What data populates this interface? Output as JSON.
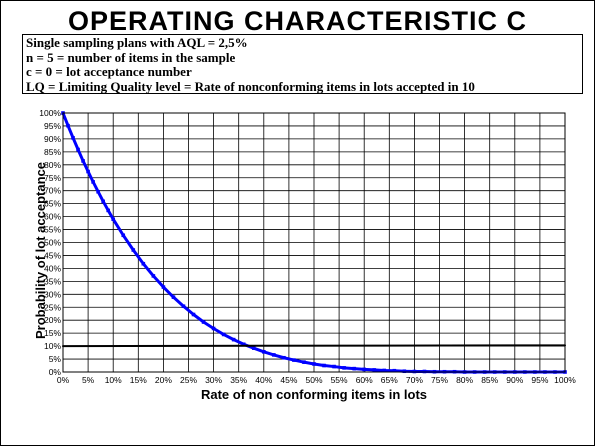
{
  "title": "OPERATING CHARACTERISTIC C",
  "info_lines": [
    "Single sampling  plans with AQL = 2,5%",
    "n = 5 = number of items in the sample",
    "c = 0 = lot acceptance number",
    "LQ = Limiting Quality level = Rate of nonconforming items in lots accepted in 10"
  ],
  "chart_data": {
    "type": "line",
    "title": "",
    "xlabel": "Rate of non conforming items in lots",
    "ylabel": "Probability of lot acceptance",
    "xlim": [
      0,
      100
    ],
    "ylim": [
      0,
      100
    ],
    "x_ticks": [
      "0%",
      "5%",
      "10%",
      "15%",
      "20%",
      "25%",
      "30%",
      "35%",
      "40%",
      "45%",
      "50%",
      "55%",
      "60%",
      "65%",
      "70%",
      "75%",
      "80%",
      "85%",
      "90%",
      "95%",
      "100%"
    ],
    "y_ticks": [
      "0%",
      "5%",
      "10%",
      "15%",
      "20%",
      "25%",
      "30%",
      "35%",
      "40%",
      "45%",
      "50%",
      "55%",
      "60%",
      "65%",
      "70%",
      "75%",
      "80%",
      "85%",
      "90%",
      "95%",
      "100%"
    ],
    "y_tick_labels_visible": [
      "0%",
      "5%",
      "10%",
      "15%",
      "20%",
      "25%",
      "30%",
      "35%",
      "40%",
      "45%",
      "50%",
      "55%",
      "60%",
      "65%",
      "70%",
      "75%",
      "80%",
      "85%",
      "90%",
      "95%",
      "100%"
    ],
    "grid": true,
    "series": [
      {
        "color": "#0000ff",
        "x": [
          0,
          1,
          2,
          3,
          4,
          5,
          6,
          7,
          8,
          9,
          10,
          12,
          14,
          16,
          18,
          20,
          22,
          24,
          26,
          28,
          30,
          32,
          34,
          36,
          38,
          40,
          42,
          44,
          46,
          48,
          50,
          52,
          54,
          56,
          58,
          60,
          62,
          64,
          66,
          68,
          70,
          72,
          74,
          76,
          78,
          80,
          82,
          84,
          86,
          88,
          90,
          92,
          94,
          96,
          98,
          100
        ],
        "y": [
          100,
          95.1,
          90.4,
          85.9,
          81.5,
          77.4,
          73.4,
          69.6,
          65.9,
          62.4,
          59.0,
          52.8,
          47.1,
          41.8,
          37.1,
          32.8,
          28.9,
          25.4,
          22.2,
          19.3,
          16.8,
          14.5,
          12.5,
          10.7,
          9.2,
          7.8,
          6.6,
          5.5,
          4.6,
          3.8,
          3.1,
          2.5,
          2.1,
          1.6,
          1.3,
          1.0,
          0.8,
          0.6,
          0.5,
          0.3,
          0.2,
          0.2,
          0.1,
          0.1,
          0.1,
          0.0,
          0.0,
          0.0,
          0.0,
          0.0,
          0.0,
          0.0,
          0.0,
          0.0,
          0.0,
          0.0
        ]
      },
      {
        "color": "#000000",
        "x": [
          0,
          100
        ],
        "y": [
          10,
          10.3
        ]
      }
    ]
  }
}
